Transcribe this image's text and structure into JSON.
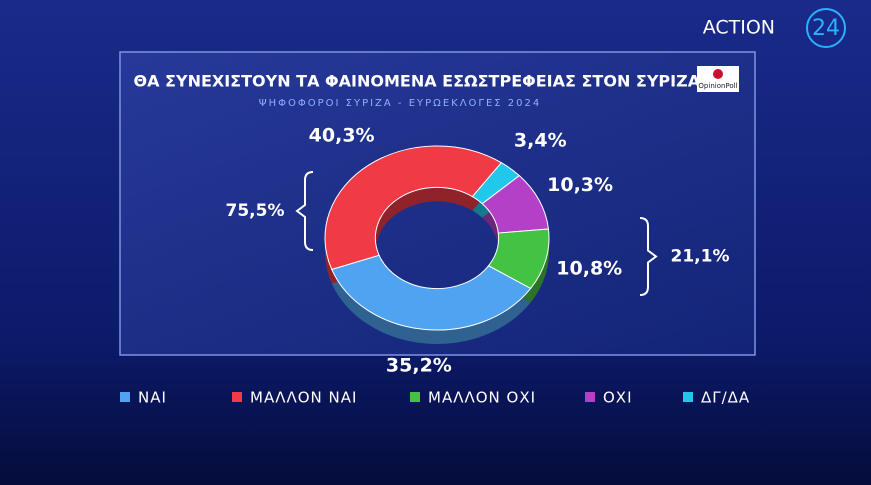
{
  "branding": {
    "channel": "ACTION",
    "channel_number": "24",
    "pollster": "OpinionPoll"
  },
  "chart_data": {
    "type": "donut",
    "title": "ΘΑ ΣΥΝΕΧΙΣΤΟΥΝ ΤΑ ΦΑΙΝΟΜΕΝΑ ΕΣΩΣΤΡΕΦΕΙΑΣ ΣΤΟΝ ΣΥΡΙΖΑ;",
    "subtitle": "ΨΗΦΟΦΟΡΟΙ ΣΥΡΙΖΑ - ΕΥΡΩΕΚΛΟΓΕΣ 2024",
    "categories": [
      "ΝΑΙ",
      "ΜΑΛΛΟΝ ΝΑΙ",
      "ΜΑΛΛΟΝ ΟΧΙ",
      "ΟΧΙ",
      "ΔΓ/ΔΑ"
    ],
    "values": [
      35.2,
      40.3,
      10.8,
      10.3,
      3.4
    ],
    "value_labels": [
      "35,2%",
      "40,3%",
      "10,8%",
      "10,3%",
      "3,4%"
    ],
    "colors": [
      "#4fa3f0",
      "#f03a46",
      "#44c244",
      "#b440c8",
      "#22c8ec"
    ],
    "annotations": [
      {
        "value": 75.5,
        "label": "75,5%"
      },
      {
        "value": 21.1,
        "label": "21,1%"
      }
    ]
  }
}
